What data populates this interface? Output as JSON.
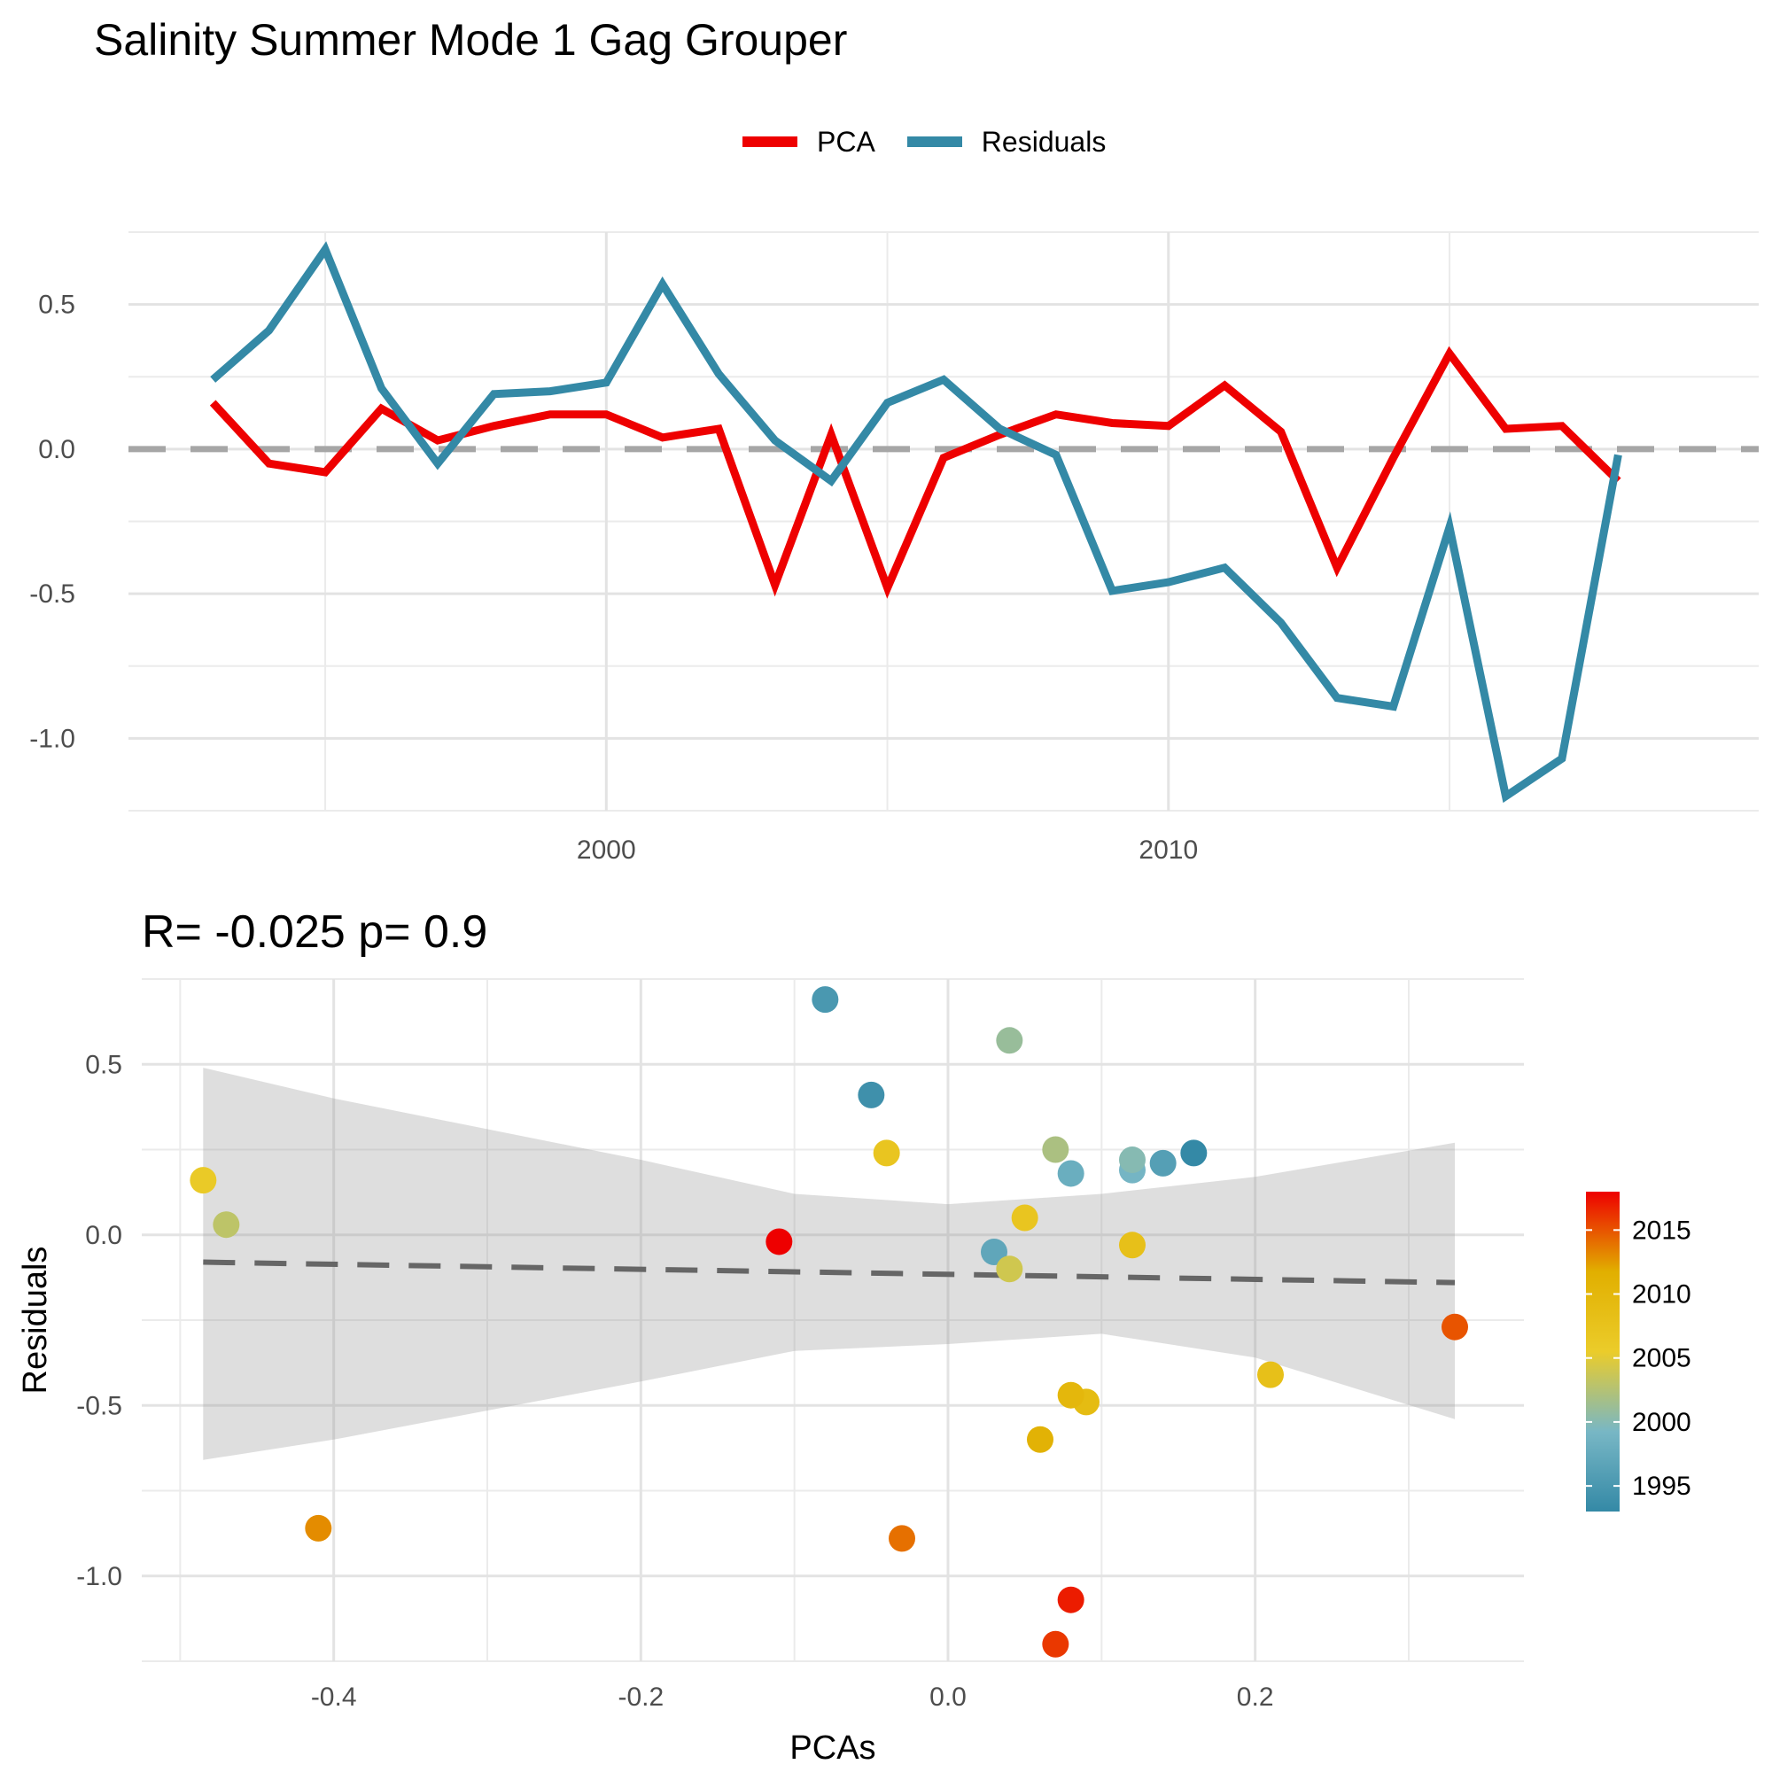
{
  "title": "Salinity Summer Mode 1 Gag Grouper",
  "chart_data": [
    {
      "type": "line",
      "title": "Salinity Summer Mode 1 Gag Grouper",
      "legend_position": "top",
      "xlim": [
        1991.5,
        2020.5
      ],
      "ylim": [
        -1.25,
        0.75
      ],
      "x_ticks": [
        2000,
        2010
      ],
      "x_minor_ticks": [
        1995,
        2005,
        2015
      ],
      "y_ticks": [
        0.5,
        0.0,
        -0.5,
        -1.0
      ],
      "y_tick_labels": [
        "0.5",
        "0.0",
        "-0.5",
        "-1.0"
      ],
      "reference_line": 0,
      "x": [
        1993,
        1994,
        1995,
        1996,
        1997,
        1998,
        1999,
        2000,
        2001,
        2002,
        2003,
        2004,
        2005,
        2006,
        2007,
        2008,
        2009,
        2010,
        2011,
        2012,
        2013,
        2014,
        2015,
        2016,
        2017,
        2018
      ],
      "series": [
        {
          "name": "PCA",
          "color": "#ee0000",
          "values": [
            0.16,
            -0.05,
            -0.08,
            0.14,
            0.03,
            0.08,
            0.12,
            0.12,
            0.04,
            0.07,
            -0.47,
            0.05,
            -0.48,
            -0.03,
            0.05,
            0.12,
            0.09,
            0.08,
            0.22,
            0.06,
            -0.41,
            -0.03,
            0.33,
            0.07,
            0.08,
            -0.11
          ]
        },
        {
          "name": "Residuals",
          "color": "#3489a6",
          "values": [
            0.24,
            0.41,
            0.69,
            0.21,
            -0.05,
            0.19,
            0.2,
            0.23,
            0.57,
            0.26,
            0.03,
            -0.11,
            0.16,
            0.24,
            0.07,
            -0.02,
            -0.49,
            -0.46,
            -0.41,
            -0.6,
            -0.86,
            -0.89,
            -0.27,
            -1.2,
            -1.07,
            -0.02
          ]
        }
      ]
    },
    {
      "type": "scatter",
      "title": "R= -0.025  p= 0.9",
      "xlabel": "PCAs",
      "ylabel": "Residuals",
      "xlim": [
        -0.525,
        0.375
      ],
      "ylim": [
        -1.25,
        0.75
      ],
      "x_ticks": [
        -0.4,
        -0.2,
        0.0,
        0.2
      ],
      "x_tick_labels": [
        "-0.4",
        "-0.2",
        "0.0",
        "0.2"
      ],
      "x_minor_ticks": [
        -0.5,
        -0.3,
        -0.1,
        0.1,
        0.3
      ],
      "y_ticks": [
        0.5,
        0.0,
        -0.5,
        -1.0
      ],
      "y_tick_labels": [
        "0.5",
        "0.0",
        "-0.5",
        "-1.0"
      ],
      "fit_line": {
        "x": [
          -0.485,
          0.33
        ],
        "y": [
          -0.08,
          -0.14
        ]
      },
      "confidence_band": {
        "x": [
          -0.485,
          -0.4,
          -0.2,
          -0.1,
          0.0,
          0.1,
          0.2,
          0.33
        ],
        "lower": [
          -0.66,
          -0.6,
          -0.43,
          -0.34,
          -0.32,
          -0.29,
          -0.36,
          -0.54
        ],
        "upper": [
          0.49,
          0.4,
          0.22,
          0.12,
          0.09,
          0.12,
          0.17,
          0.27
        ]
      },
      "points": [
        {
          "x": 0.16,
          "y": 0.24,
          "year": 1993
        },
        {
          "x": -0.05,
          "y": 0.41,
          "year": 1994
        },
        {
          "x": -0.08,
          "y": 0.69,
          "year": 1995
        },
        {
          "x": 0.14,
          "y": 0.21,
          "year": 1996
        },
        {
          "x": 0.03,
          "y": -0.05,
          "year": 1997
        },
        {
          "x": 0.08,
          "y": 0.18,
          "year": 1998
        },
        {
          "x": 0.12,
          "y": 0.19,
          "year": 1999
        },
        {
          "x": 0.12,
          "y": 0.22,
          "year": 2000
        },
        {
          "x": 0.04,
          "y": 0.57,
          "year": 2001
        },
        {
          "x": 0.07,
          "y": 0.25,
          "year": 2002
        },
        {
          "x": -0.47,
          "y": 0.03,
          "year": 2003
        },
        {
          "x": 0.04,
          "y": -0.1,
          "year": 2004
        },
        {
          "x": -0.485,
          "y": 0.16,
          "year": 2006
        },
        {
          "x": 0.05,
          "y": 0.05,
          "year": 2007
        },
        {
          "x": -0.04,
          "y": 0.24,
          "year": 2007
        },
        {
          "x": 0.12,
          "y": -0.03,
          "year": 2008
        },
        {
          "x": 0.09,
          "y": -0.49,
          "year": 2009
        },
        {
          "x": 0.08,
          "y": -0.47,
          "year": 2010
        },
        {
          "x": 0.21,
          "y": -0.41,
          "year": 2008
        },
        {
          "x": 0.06,
          "y": -0.6,
          "year": 2011
        },
        {
          "x": -0.41,
          "y": -0.86,
          "year": 2013
        },
        {
          "x": -0.03,
          "y": -0.89,
          "year": 2014
        },
        {
          "x": 0.33,
          "y": -0.27,
          "year": 2015
        },
        {
          "x": 0.07,
          "y": -1.2,
          "year": 2016
        },
        {
          "x": 0.08,
          "y": -1.07,
          "year": 2017
        },
        {
          "x": -0.11,
          "y": -0.02,
          "year": 2018
        }
      ],
      "colorbar": {
        "limits": [
          1993,
          2018
        ],
        "ticks": [
          1995,
          2000,
          2005,
          2010,
          2015
        ],
        "tick_labels": [
          "1995",
          "2000",
          "2005",
          "2010",
          "2015"
        ],
        "colors": [
          "#3489a6",
          "#78b7c5",
          "#ebcc2a",
          "#e1af00",
          "#ee0000"
        ]
      }
    }
  ]
}
